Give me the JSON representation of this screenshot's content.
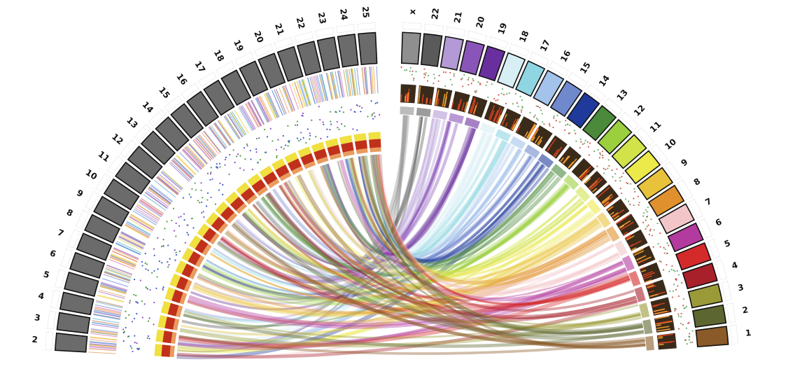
{
  "chart_data": {
    "type": "circos",
    "right_genome": {
      "chromosomes": [
        {
          "label": "x",
          "color": "#8f8f8f"
        },
        {
          "label": "22",
          "color": "#5a5a5a"
        },
        {
          "label": "21",
          "color": "#b39ad6"
        },
        {
          "label": "20",
          "color": "#8a55b8"
        },
        {
          "label": "19",
          "color": "#6a2f9e"
        },
        {
          "label": "18",
          "color": "#d7eef5"
        },
        {
          "label": "17",
          "color": "#8fd6e2"
        },
        {
          "label": "16",
          "color": "#a3c3ea"
        },
        {
          "label": "15",
          "color": "#7088cc"
        },
        {
          "label": "14",
          "color": "#1f3a9a"
        },
        {
          "label": "13",
          "color": "#4a8a3a"
        },
        {
          "label": "12",
          "color": "#9ccf3e"
        },
        {
          "label": "11",
          "color": "#d2e34a"
        },
        {
          "label": "10",
          "color": "#ece94a"
        },
        {
          "label": "9",
          "color": "#e8c23a"
        },
        {
          "label": "8",
          "color": "#e0902c"
        },
        {
          "label": "7",
          "color": "#f2c6c8"
        },
        {
          "label": "6",
          "color": "#b33a9e"
        },
        {
          "label": "5",
          "color": "#d42a2a"
        },
        {
          "label": "4",
          "color": "#a8202a"
        },
        {
          "label": "3",
          "color": "#9a9a38"
        },
        {
          "label": "2",
          "color": "#5c6630"
        },
        {
          "label": "1",
          "color": "#8a5a28"
        }
      ]
    },
    "left_genome": {
      "color": "#6b6b6b",
      "chromosomes": [
        "25",
        "24",
        "23",
        "22",
        "21",
        "20",
        "19",
        "18",
        "17",
        "16",
        "15",
        "14",
        "13",
        "12",
        "11",
        "10",
        "9",
        "8",
        "7",
        "6",
        "5",
        "4",
        "3",
        "2"
      ]
    }
  }
}
